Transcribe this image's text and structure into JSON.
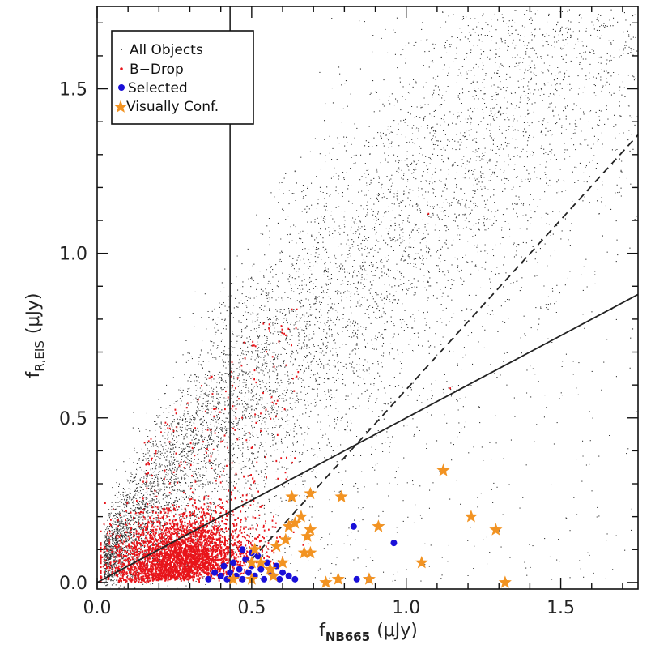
{
  "chart_data": {
    "type": "scatter",
    "title": "",
    "xlabel": {
      "main": "f",
      "sub": "NB665",
      "units": "(μJy)"
    },
    "ylabel": {
      "main": "f",
      "sub": "R,EIS",
      "units": "(μJy)"
    },
    "xlim": [
      0,
      1.75
    ],
    "ylim": [
      -0.02,
      1.75
    ],
    "x_ticks": [
      0,
      0.5,
      1.0,
      1.5
    ],
    "x_tick_labels": [
      "0.0",
      "0.5",
      "1.0",
      "1.5"
    ],
    "y_ticks": [
      0,
      0.5,
      1.0,
      1.5
    ],
    "y_tick_labels": [
      "0.0",
      "0.5",
      "1.0",
      "1.5"
    ],
    "legend_position": "top-left",
    "legend": [
      "All Objects",
      "B−Drop",
      "Selected",
      "Visually Conf."
    ],
    "lines": {
      "vertical_x": 0.43,
      "solid_slope": 0.5,
      "dashed": {
        "x0": 0.5,
        "y0": 0.07,
        "x1": 1.75,
        "y1": 1.36
      }
    },
    "series": [
      {
        "name": "Selected",
        "points": [
          [
            0.36,
            0.01
          ],
          [
            0.38,
            0.03
          ],
          [
            0.4,
            0.02
          ],
          [
            0.41,
            0.05
          ],
          [
            0.42,
            0.01
          ],
          [
            0.43,
            0.03
          ],
          [
            0.44,
            0.06
          ],
          [
            0.45,
            0.02
          ],
          [
            0.46,
            0.04
          ],
          [
            0.47,
            0.01
          ],
          [
            0.48,
            0.07
          ],
          [
            0.49,
            0.03
          ],
          [
            0.5,
            0.05
          ],
          [
            0.51,
            0.02
          ],
          [
            0.52,
            0.08
          ],
          [
            0.53,
            0.04
          ],
          [
            0.54,
            0.01
          ],
          [
            0.55,
            0.06
          ],
          [
            0.56,
            0.03
          ],
          [
            0.57,
            0.02
          ],
          [
            0.58,
            0.05
          ],
          [
            0.59,
            0.01
          ],
          [
            0.6,
            0.03
          ],
          [
            0.62,
            0.02
          ],
          [
            0.64,
            0.01
          ],
          [
            0.5,
            0.09
          ],
          [
            0.47,
            0.1
          ],
          [
            0.83,
            0.17
          ],
          [
            0.96,
            0.12
          ],
          [
            0.84,
            0.01
          ],
          [
            0.88,
            0.01
          ]
        ]
      },
      {
        "name": "Visually Conf.",
        "points": [
          [
            1.12,
            0.34
          ],
          [
            1.21,
            0.2
          ],
          [
            1.29,
            0.16
          ],
          [
            0.91,
            0.17
          ],
          [
            0.79,
            0.26
          ],
          [
            0.69,
            0.27
          ],
          [
            0.63,
            0.26
          ],
          [
            0.66,
            0.2
          ],
          [
            0.64,
            0.18
          ],
          [
            0.62,
            0.17
          ],
          [
            0.69,
            0.16
          ],
          [
            0.68,
            0.14
          ],
          [
            0.61,
            0.13
          ],
          [
            0.58,
            0.11
          ],
          [
            0.67,
            0.09
          ],
          [
            0.69,
            0.09
          ],
          [
            0.6,
            0.06
          ],
          [
            0.53,
            0.06
          ],
          [
            0.56,
            0.04
          ],
          [
            0.5,
            0.06
          ],
          [
            0.51,
            0.1
          ],
          [
            0.57,
            0.02
          ],
          [
            0.5,
            0.01
          ],
          [
            0.74,
            0.0
          ],
          [
            0.78,
            0.01
          ],
          [
            0.88,
            0.01
          ],
          [
            1.05,
            0.06
          ],
          [
            1.32,
            0.0
          ],
          [
            0.44,
            0.01
          ]
        ]
      }
    ]
  }
}
